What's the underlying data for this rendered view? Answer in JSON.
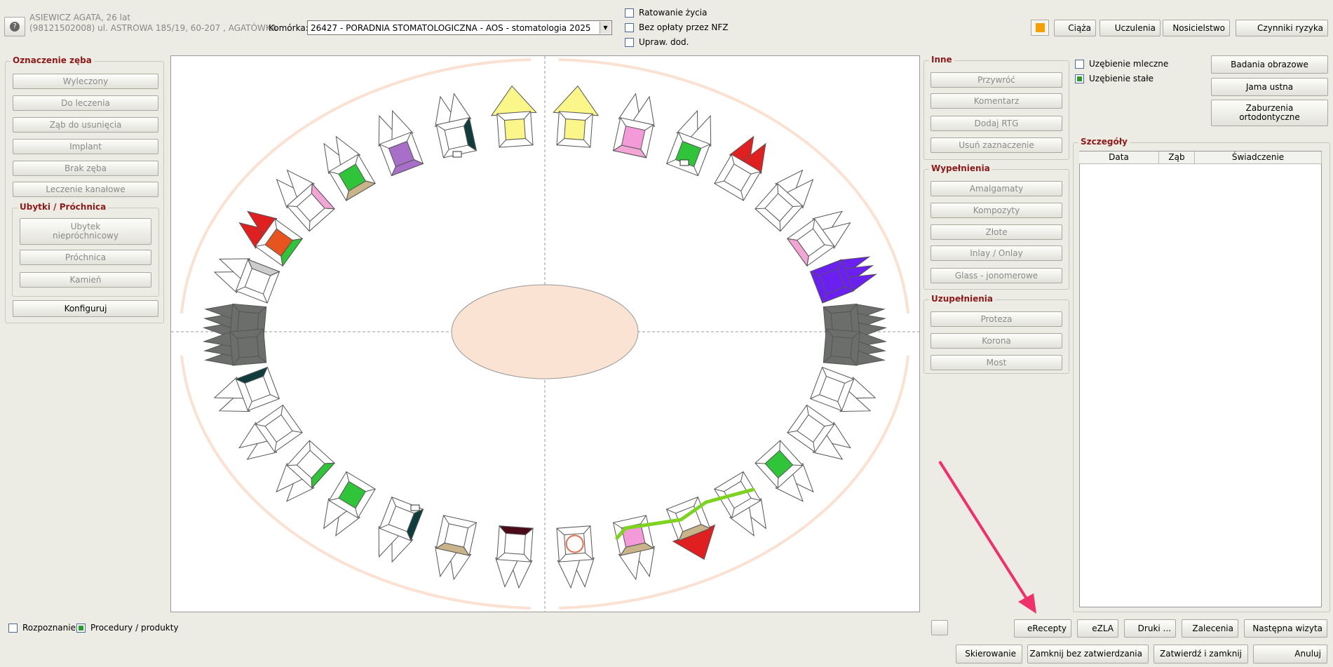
{
  "header": {
    "patient": "ASIEWICZ AGATA, 26 lat",
    "address": "(98121502008) ul. ASTROWA 185/19, 60-207 , AGATÓWKA",
    "cell_label": "Komórka:",
    "cell_value": "26427 - PORADNIA STOMATOLOGICZNA - AOS - stomatologia 2025",
    "flags": [
      "Ratowanie życia",
      "Bez opłaty przez NFZ",
      "Upraw. dod."
    ],
    "buttons": [
      "Ciąża",
      "Uczulenia",
      "Nosicielstwo",
      "Czynniki ryzyka"
    ]
  },
  "tooth_marking": {
    "title": "Oznaczenie zęba",
    "buttons": [
      "Wyleczony",
      "Do leczenia",
      "Ząb do usunięcia",
      "Implant",
      "Brak zęba",
      "Leczenie kanałowe"
    ],
    "defects": {
      "title": "Ubytki / Próchnica",
      "buttons": [
        "Ubytek niepróchnicowy",
        "Próchnica",
        "Kamień"
      ]
    },
    "configure": "Konfiguruj"
  },
  "other": {
    "title": "Inne",
    "buttons": [
      "Przywróć",
      "Komentarz",
      "Dodaj RTG",
      "Usuń zaznaczenie"
    ]
  },
  "fillings": {
    "title": "Wypełnienia",
    "buttons": [
      "Amalgamaty",
      "Kompozyty",
      "Złote",
      "Inlay / Onlay",
      "Glass - jonomerowe"
    ]
  },
  "restorations": {
    "title": "Uzupełnienia",
    "buttons": [
      "Proteza",
      "Korona",
      "Most"
    ]
  },
  "dentition": [
    "Uzębienie mleczne",
    "Uzębienie stałe"
  ],
  "side_buttons": [
    "Badania obrazowe",
    "Jama ustna",
    "Zaburzenia ortodontyczne"
  ],
  "details": {
    "title": "Szczegóły",
    "columns": [
      "Data",
      "Ząb",
      "Świadczenie"
    ]
  },
  "footer": {
    "filters": [
      "Rozpoznanie",
      "Procedury / produkty"
    ],
    "actions_top": [
      "eRecepty",
      "eZLA",
      "Druki ...",
      "Zalecenia",
      "Następna wizyta"
    ],
    "actions_bottom": [
      "Skierowanie",
      "Zamknij bez zatwierdzania",
      "Zatwierdź i zamknij",
      "Anuluj"
    ]
  }
}
